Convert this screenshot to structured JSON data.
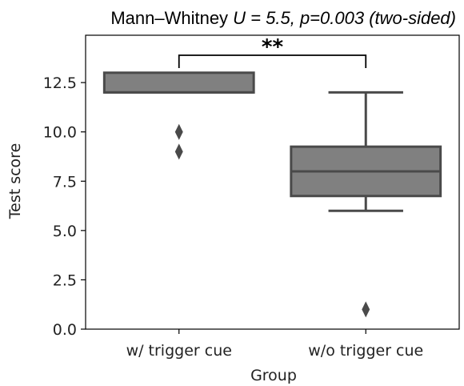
{
  "chart_data": {
    "type": "box",
    "title": {
      "prefix": "Mann–Whitney ",
      "italic": "U = 5.5, p=0.003 (two-sided)"
    },
    "xlabel": "Group",
    "ylabel": "Test score",
    "ylim": [
      0,
      14.9
    ],
    "yticks": [
      0.0,
      2.5,
      5.0,
      7.5,
      10.0,
      12.5
    ],
    "ytick_labels": [
      "0.0",
      "2.5",
      "5.0",
      "7.5",
      "10.0",
      "12.5"
    ],
    "categories": [
      "w/ trigger cue",
      "w/o trigger cue"
    ],
    "boxes": [
      {
        "category": "w/ trigger cue",
        "whisker_low": 12.0,
        "q1": 12.0,
        "median": 12.0,
        "q3": 13.0,
        "whisker_high": 13.0,
        "outliers": [
          10.0,
          9.0
        ]
      },
      {
        "category": "w/o trigger cue",
        "whisker_low": 6.0,
        "q1": 6.75,
        "median": 8.0,
        "q3": 9.25,
        "whisker_high": 12.0,
        "outliers": [
          1.0
        ]
      }
    ],
    "significance": {
      "label": "**",
      "between": [
        "w/ trigger cue",
        "w/o trigger cue"
      ],
      "at": 14.0
    },
    "colors": {
      "box_fill": "#808080",
      "box_edge": "#4a4a4a",
      "outlier": "#4a4a4a"
    },
    "grid": false
  }
}
